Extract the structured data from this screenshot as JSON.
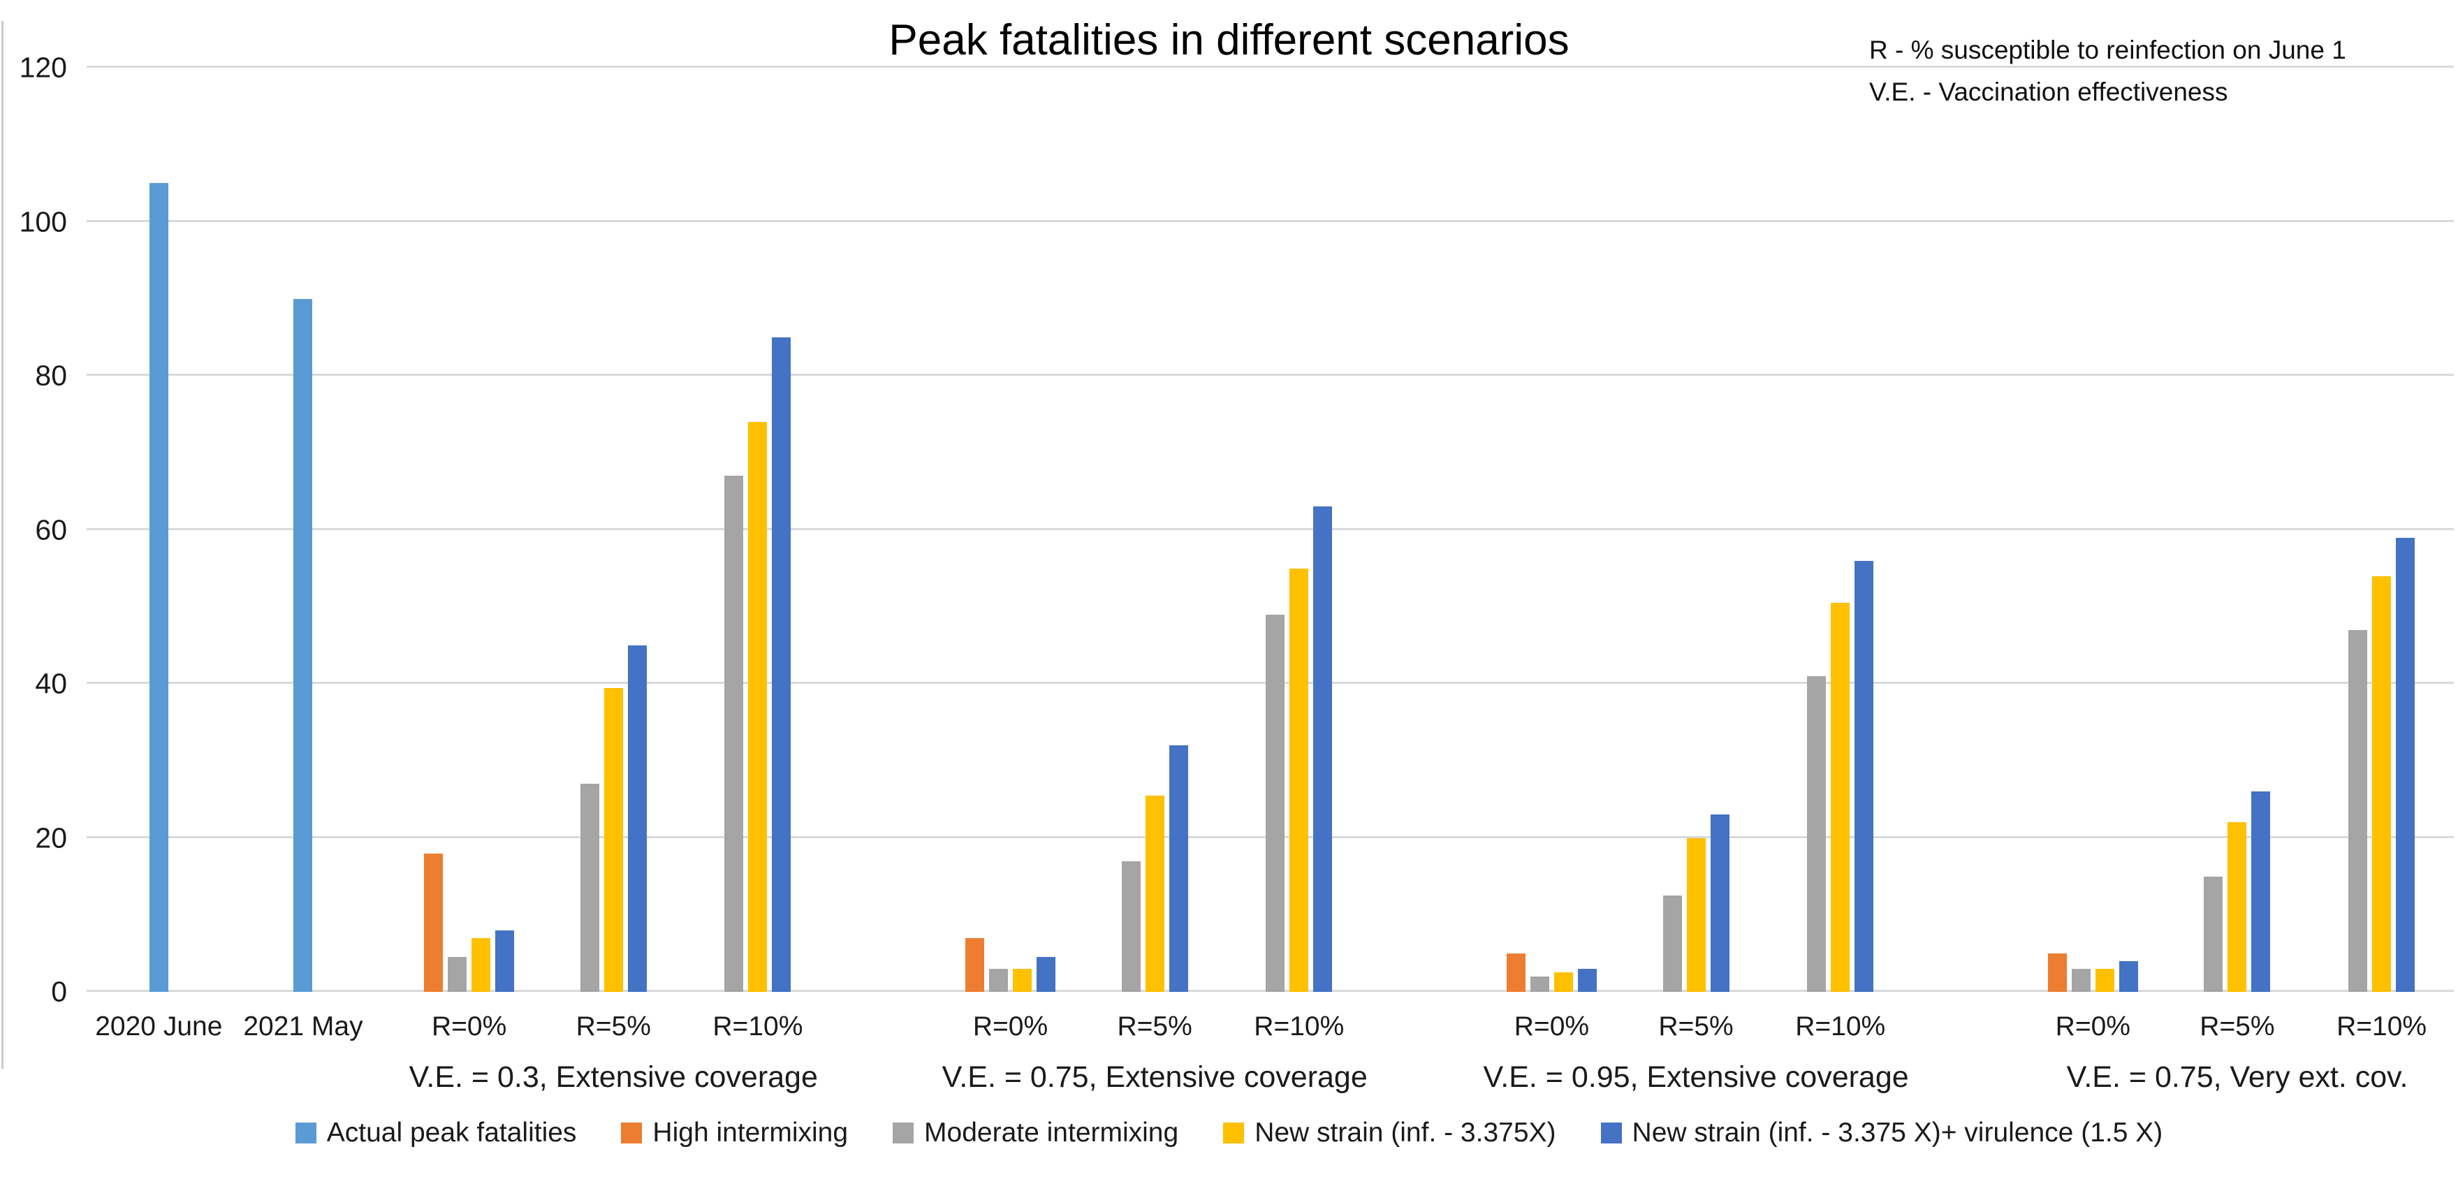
{
  "title": "Peak fatalities in different scenarios",
  "notes": {
    "line1": "R - % susceptible to reinfection on June 1",
    "line2": "V.E. - Vaccination effectiveness"
  },
  "colors": {
    "gridline": "#d9d9d9",
    "actual": "#5B9BD5",
    "high": "#ED7D31",
    "moderate": "#A5A5A5",
    "strain": "#FFC000",
    "strain_vir": "#4472C4"
  },
  "chart_data": {
    "type": "bar",
    "title": "Peak fatalities in different scenarios",
    "ylim": [
      0,
      120
    ],
    "yticks": [
      0,
      20,
      40,
      60,
      80,
      100,
      120
    ],
    "grid": "horizontal",
    "legend_position": "bottom",
    "series_info": {
      "actual": {
        "label": "Actual peak fatalities",
        "color": "#5B9BD5"
      },
      "high": {
        "label": "High intermixing",
        "color": "#ED7D31"
      },
      "moderate": {
        "label": "Moderate intermixing",
        "color": "#A5A5A5"
      },
      "strain": {
        "label": "New strain (inf. - 3.375X)",
        "color": "#FFC000"
      },
      "strain_vir": {
        "label": "New strain (inf. - 3.375 X)+ virulence (1.5 X)",
        "color": "#4472C4"
      }
    },
    "legend_order": [
      "actual",
      "high",
      "moderate",
      "strain",
      "strain_vir"
    ],
    "groups": [
      {
        "label": "",
        "gap_before": 0,
        "slots": [
          {
            "tick": "2020 June",
            "bars": [
              {
                "series": "actual",
                "value": 105
              }
            ]
          },
          {
            "tick": "2021 May",
            "bars": [
              {
                "series": "actual",
                "value": 90
              }
            ]
          }
        ]
      },
      {
        "label": "V.E. = 0.3, Extensive coverage",
        "gap_before": 0.15,
        "slots": [
          {
            "tick": "R=0%",
            "bars": [
              {
                "series": "high",
                "value": 18
              },
              {
                "series": "moderate",
                "value": 4.5
              },
              {
                "series": "strain",
                "value": 7
              },
              {
                "series": "strain_vir",
                "value": 8
              }
            ]
          },
          {
            "tick": "R=5%",
            "bars": [
              {
                "series": "moderate",
                "value": 27
              },
              {
                "series": "strain",
                "value": 39.5
              },
              {
                "series": "strain_vir",
                "value": 45
              }
            ]
          },
          {
            "tick": "R=10%",
            "bars": [
              {
                "series": "moderate",
                "value": 67
              },
              {
                "series": "strain",
                "value": 74
              },
              {
                "series": "strain_vir",
                "value": 85
              }
            ]
          }
        ]
      },
      {
        "label": "V.E. = 0.75, Extensive coverage",
        "gap_before": 0.75,
        "slots": [
          {
            "tick": "R=0%",
            "bars": [
              {
                "series": "high",
                "value": 7
              },
              {
                "series": "moderate",
                "value": 3
              },
              {
                "series": "strain",
                "value": 3
              },
              {
                "series": "strain_vir",
                "value": 4.5
              }
            ]
          },
          {
            "tick": "R=5%",
            "bars": [
              {
                "series": "moderate",
                "value": 17
              },
              {
                "series": "strain",
                "value": 25.5
              },
              {
                "series": "strain_vir",
                "value": 32
              }
            ]
          },
          {
            "tick": "R=10%",
            "bars": [
              {
                "series": "moderate",
                "value": 49
              },
              {
                "series": "strain",
                "value": 55
              },
              {
                "series": "strain_vir",
                "value": 63
              }
            ]
          }
        ]
      },
      {
        "label": "V.E. = 0.95, Extensive coverage",
        "gap_before": 0.75,
        "slots": [
          {
            "tick": "R=0%",
            "bars": [
              {
                "series": "high",
                "value": 5
              },
              {
                "series": "moderate",
                "value": 2
              },
              {
                "series": "strain",
                "value": 2.5
              },
              {
                "series": "strain_vir",
                "value": 3
              }
            ]
          },
          {
            "tick": "R=5%",
            "bars": [
              {
                "series": "moderate",
                "value": 12.5
              },
              {
                "series": "strain",
                "value": 20
              },
              {
                "series": "strain_vir",
                "value": 23
              }
            ]
          },
          {
            "tick": "R=10%",
            "bars": [
              {
                "series": "moderate",
                "value": 41
              },
              {
                "series": "strain",
                "value": 50.5
              },
              {
                "series": "strain_vir",
                "value": 56
              }
            ]
          }
        ]
      },
      {
        "label": "V.E. = 0.75,  Very ext. cov.",
        "gap_before": 0.75,
        "slots": [
          {
            "tick": "R=0%",
            "bars": [
              {
                "series": "high",
                "value": 5
              },
              {
                "series": "moderate",
                "value": 3
              },
              {
                "series": "strain",
                "value": 3
              },
              {
                "series": "strain_vir",
                "value": 4
              }
            ]
          },
          {
            "tick": "R=5%",
            "bars": [
              {
                "series": "moderate",
                "value": 15
              },
              {
                "series": "strain",
                "value": 22
              },
              {
                "series": "strain_vir",
                "value": 26
              }
            ]
          },
          {
            "tick": "R=10%",
            "bars": [
              {
                "series": "moderate",
                "value": 47
              },
              {
                "series": "strain",
                "value": 54
              },
              {
                "series": "strain_vir",
                "value": 59
              }
            ]
          }
        ]
      }
    ]
  }
}
